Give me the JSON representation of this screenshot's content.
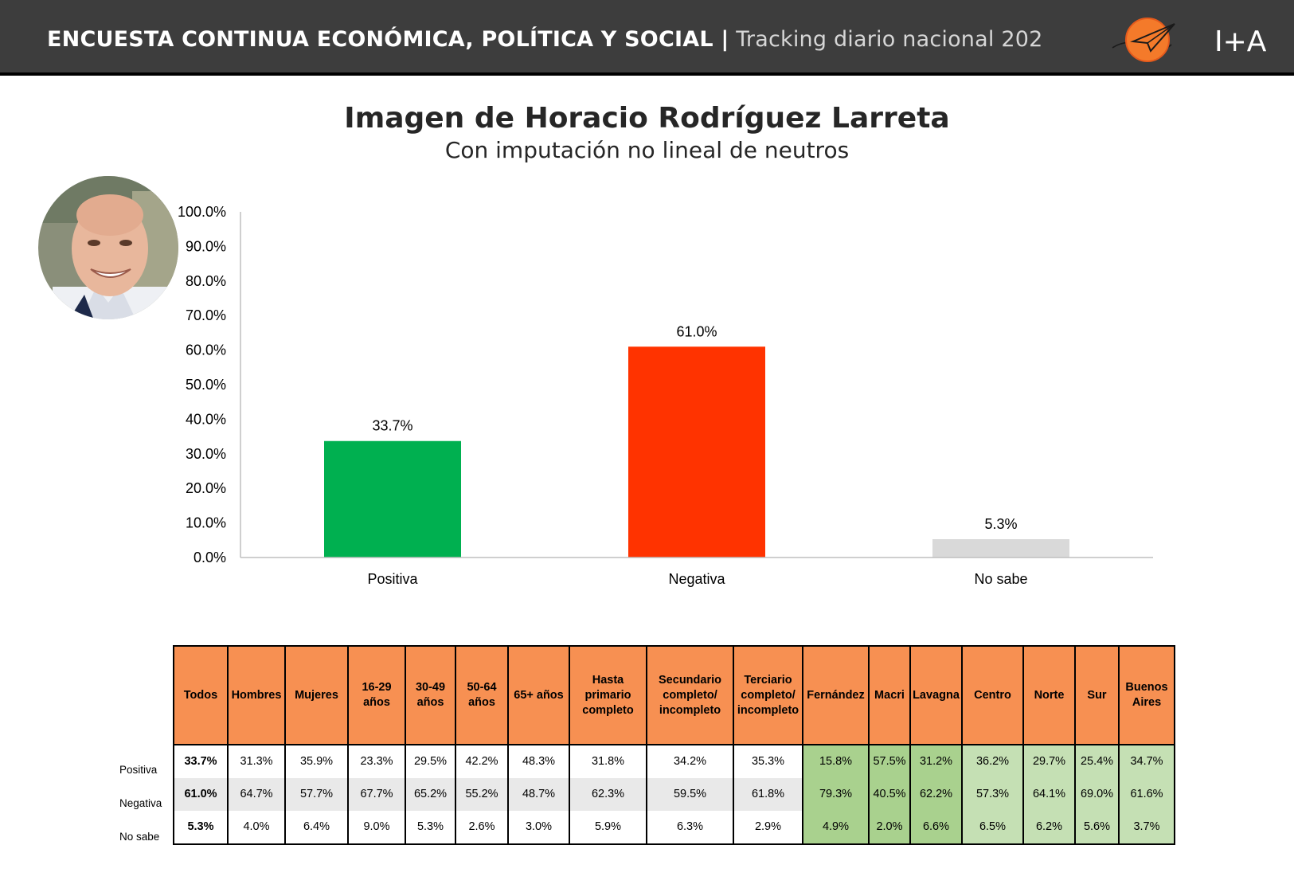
{
  "header": {
    "title_bold": "ENCUESTA CONTINUA ECONÓMICA, POLÍTICA Y SOCIAL |",
    "title_light": "Tracking diario nacional 202",
    "logo_text": "I+A"
  },
  "colors": {
    "header_bg": "#3d3d3d",
    "positiva": "#00b050",
    "negativa": "#ff3300",
    "no_sabe": "#d9d9d9",
    "table_header": "#f79052",
    "green_dark": "#a9d18e",
    "green_light": "#c5e0b4"
  },
  "chart_data": {
    "type": "bar",
    "title": "Imagen de Horacio Rodríguez Larreta",
    "subtitle": "Con imputación no lineal de neutros",
    "categories": [
      "Positiva",
      "Negativa",
      "No sabe"
    ],
    "values": [
      33.7,
      61.0,
      5.3
    ],
    "data_labels": [
      "33.7%",
      "61.0%",
      "5.3%"
    ],
    "ylim": [
      0,
      100
    ],
    "yticks": [
      "0.0%",
      "10.0%",
      "20.0%",
      "30.0%",
      "40.0%",
      "50.0%",
      "60.0%",
      "70.0%",
      "80.0%",
      "90.0%",
      "100.0%"
    ],
    "xlabel": "",
    "ylabel": "",
    "grid": false
  },
  "table": {
    "columns": [
      "Todos",
      "Hombres",
      "Mujeres",
      "16-29 años",
      "30-49 años",
      "50-64 años",
      "65+ años",
      "Hasta primario completo",
      "Secundario completo/ incompleto",
      "Terciario completo/ incompleto",
      "Fernández",
      "Macri",
      "Lavagna",
      "Centro",
      "Norte",
      "Sur",
      "Buenos Aires"
    ],
    "rows": [
      {
        "label": "Positiva",
        "values": [
          "33.7%",
          "31.3%",
          "35.9%",
          "23.3%",
          "29.5%",
          "42.2%",
          "48.3%",
          "31.8%",
          "34.2%",
          "35.3%",
          "15.8%",
          "57.5%",
          "31.2%",
          "36.2%",
          "29.7%",
          "25.4%",
          "34.7%"
        ]
      },
      {
        "label": "Negativa",
        "values": [
          "61.0%",
          "64.7%",
          "57.7%",
          "67.7%",
          "65.2%",
          "55.2%",
          "48.7%",
          "62.3%",
          "59.5%",
          "61.8%",
          "79.3%",
          "40.5%",
          "62.2%",
          "57.3%",
          "64.1%",
          "69.0%",
          "61.6%"
        ]
      },
      {
        "label": "No sabe",
        "values": [
          "5.3%",
          "4.0%",
          "6.4%",
          "9.0%",
          "5.3%",
          "2.6%",
          "3.0%",
          "5.9%",
          "6.3%",
          "2.9%",
          "4.9%",
          "2.0%",
          "6.6%",
          "6.5%",
          "6.2%",
          "5.6%",
          "3.7%"
        ]
      }
    ]
  }
}
